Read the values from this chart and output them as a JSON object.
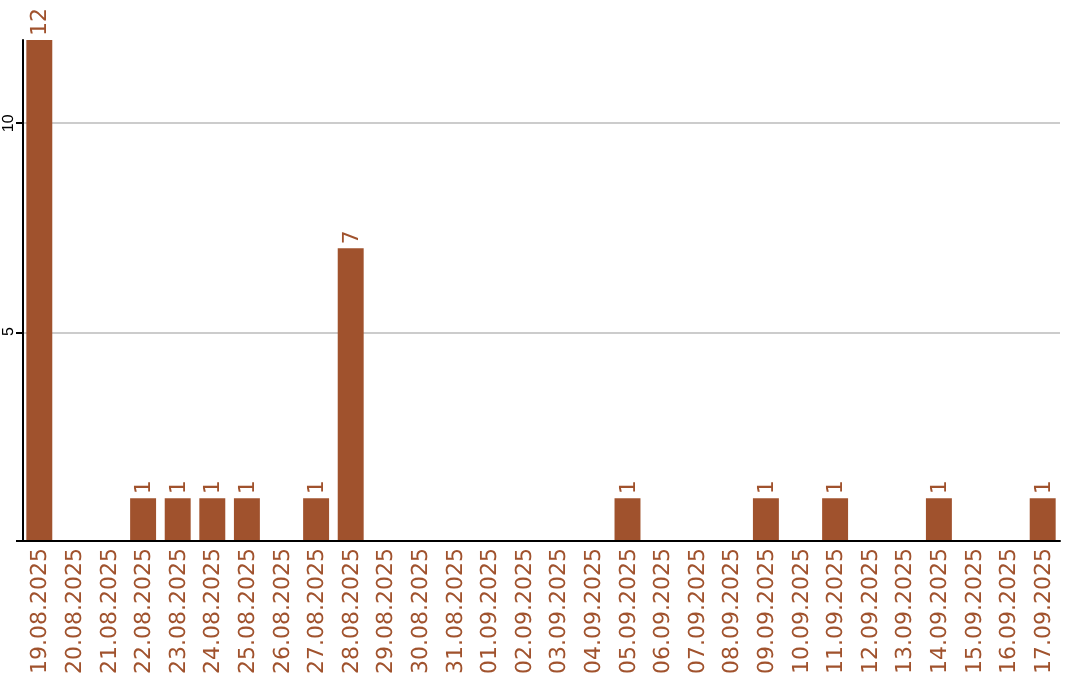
{
  "chart_data": {
    "type": "bar",
    "categories": [
      "19.08.2025",
      "20.08.2025",
      "21.08.2025",
      "22.08.2025",
      "23.08.2025",
      "24.08.2025",
      "25.08.2025",
      "26.08.2025",
      "27.08.2025",
      "28.08.2025",
      "29.08.2025",
      "30.08.2025",
      "31.08.2025",
      "01.09.2025",
      "02.09.2025",
      "03.09.2025",
      "04.09.2025",
      "05.09.2025",
      "06.09.2025",
      "07.09.2025",
      "08.09.2025",
      "09.09.2025",
      "10.09.2025",
      "11.09.2025",
      "12.09.2025",
      "13.09.2025",
      "14.09.2025",
      "15.09.2025",
      "16.09.2025",
      "17.09.2025"
    ],
    "values": [
      12,
      0,
      0,
      1,
      1,
      1,
      1,
      0,
      1,
      7,
      0,
      0,
      0,
      0,
      0,
      0,
      0,
      1,
      0,
      0,
      0,
      1,
      0,
      1,
      0,
      0,
      1,
      0,
      0,
      1
    ],
    "value_labels": [
      "12",
      null,
      null,
      "1",
      "1",
      "1",
      "1",
      null,
      "1",
      "7",
      null,
      null,
      null,
      null,
      null,
      null,
      null,
      "1",
      null,
      null,
      null,
      "1",
      null,
      "1",
      null,
      null,
      "1",
      null,
      null,
      "1"
    ],
    "color": "#a0522d",
    "ylim": [
      0,
      12
    ],
    "yticks": [
      {
        "value": 0,
        "label": null
      },
      5,
      10
    ],
    "grid": "y"
  }
}
